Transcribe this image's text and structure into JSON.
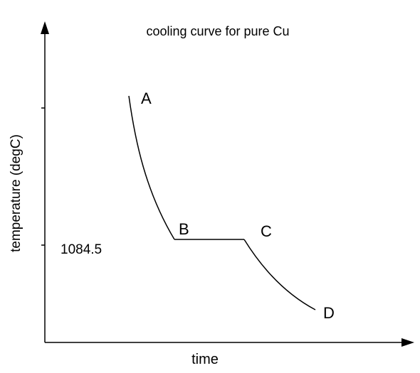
{
  "chart_data": {
    "type": "line",
    "title": "cooling curve for pure Cu",
    "xlabel": "time",
    "ylabel": "temperature (degC)",
    "y_tick_labels": [
      "1084.5"
    ],
    "points": [
      {
        "label": "A"
      },
      {
        "label": "B"
      },
      {
        "label": "C"
      },
      {
        "label": "D"
      }
    ],
    "series": [
      {
        "segments": [
          "A-B",
          "B-C",
          "C-D"
        ]
      }
    ],
    "grid": false,
    "legend": "none"
  }
}
